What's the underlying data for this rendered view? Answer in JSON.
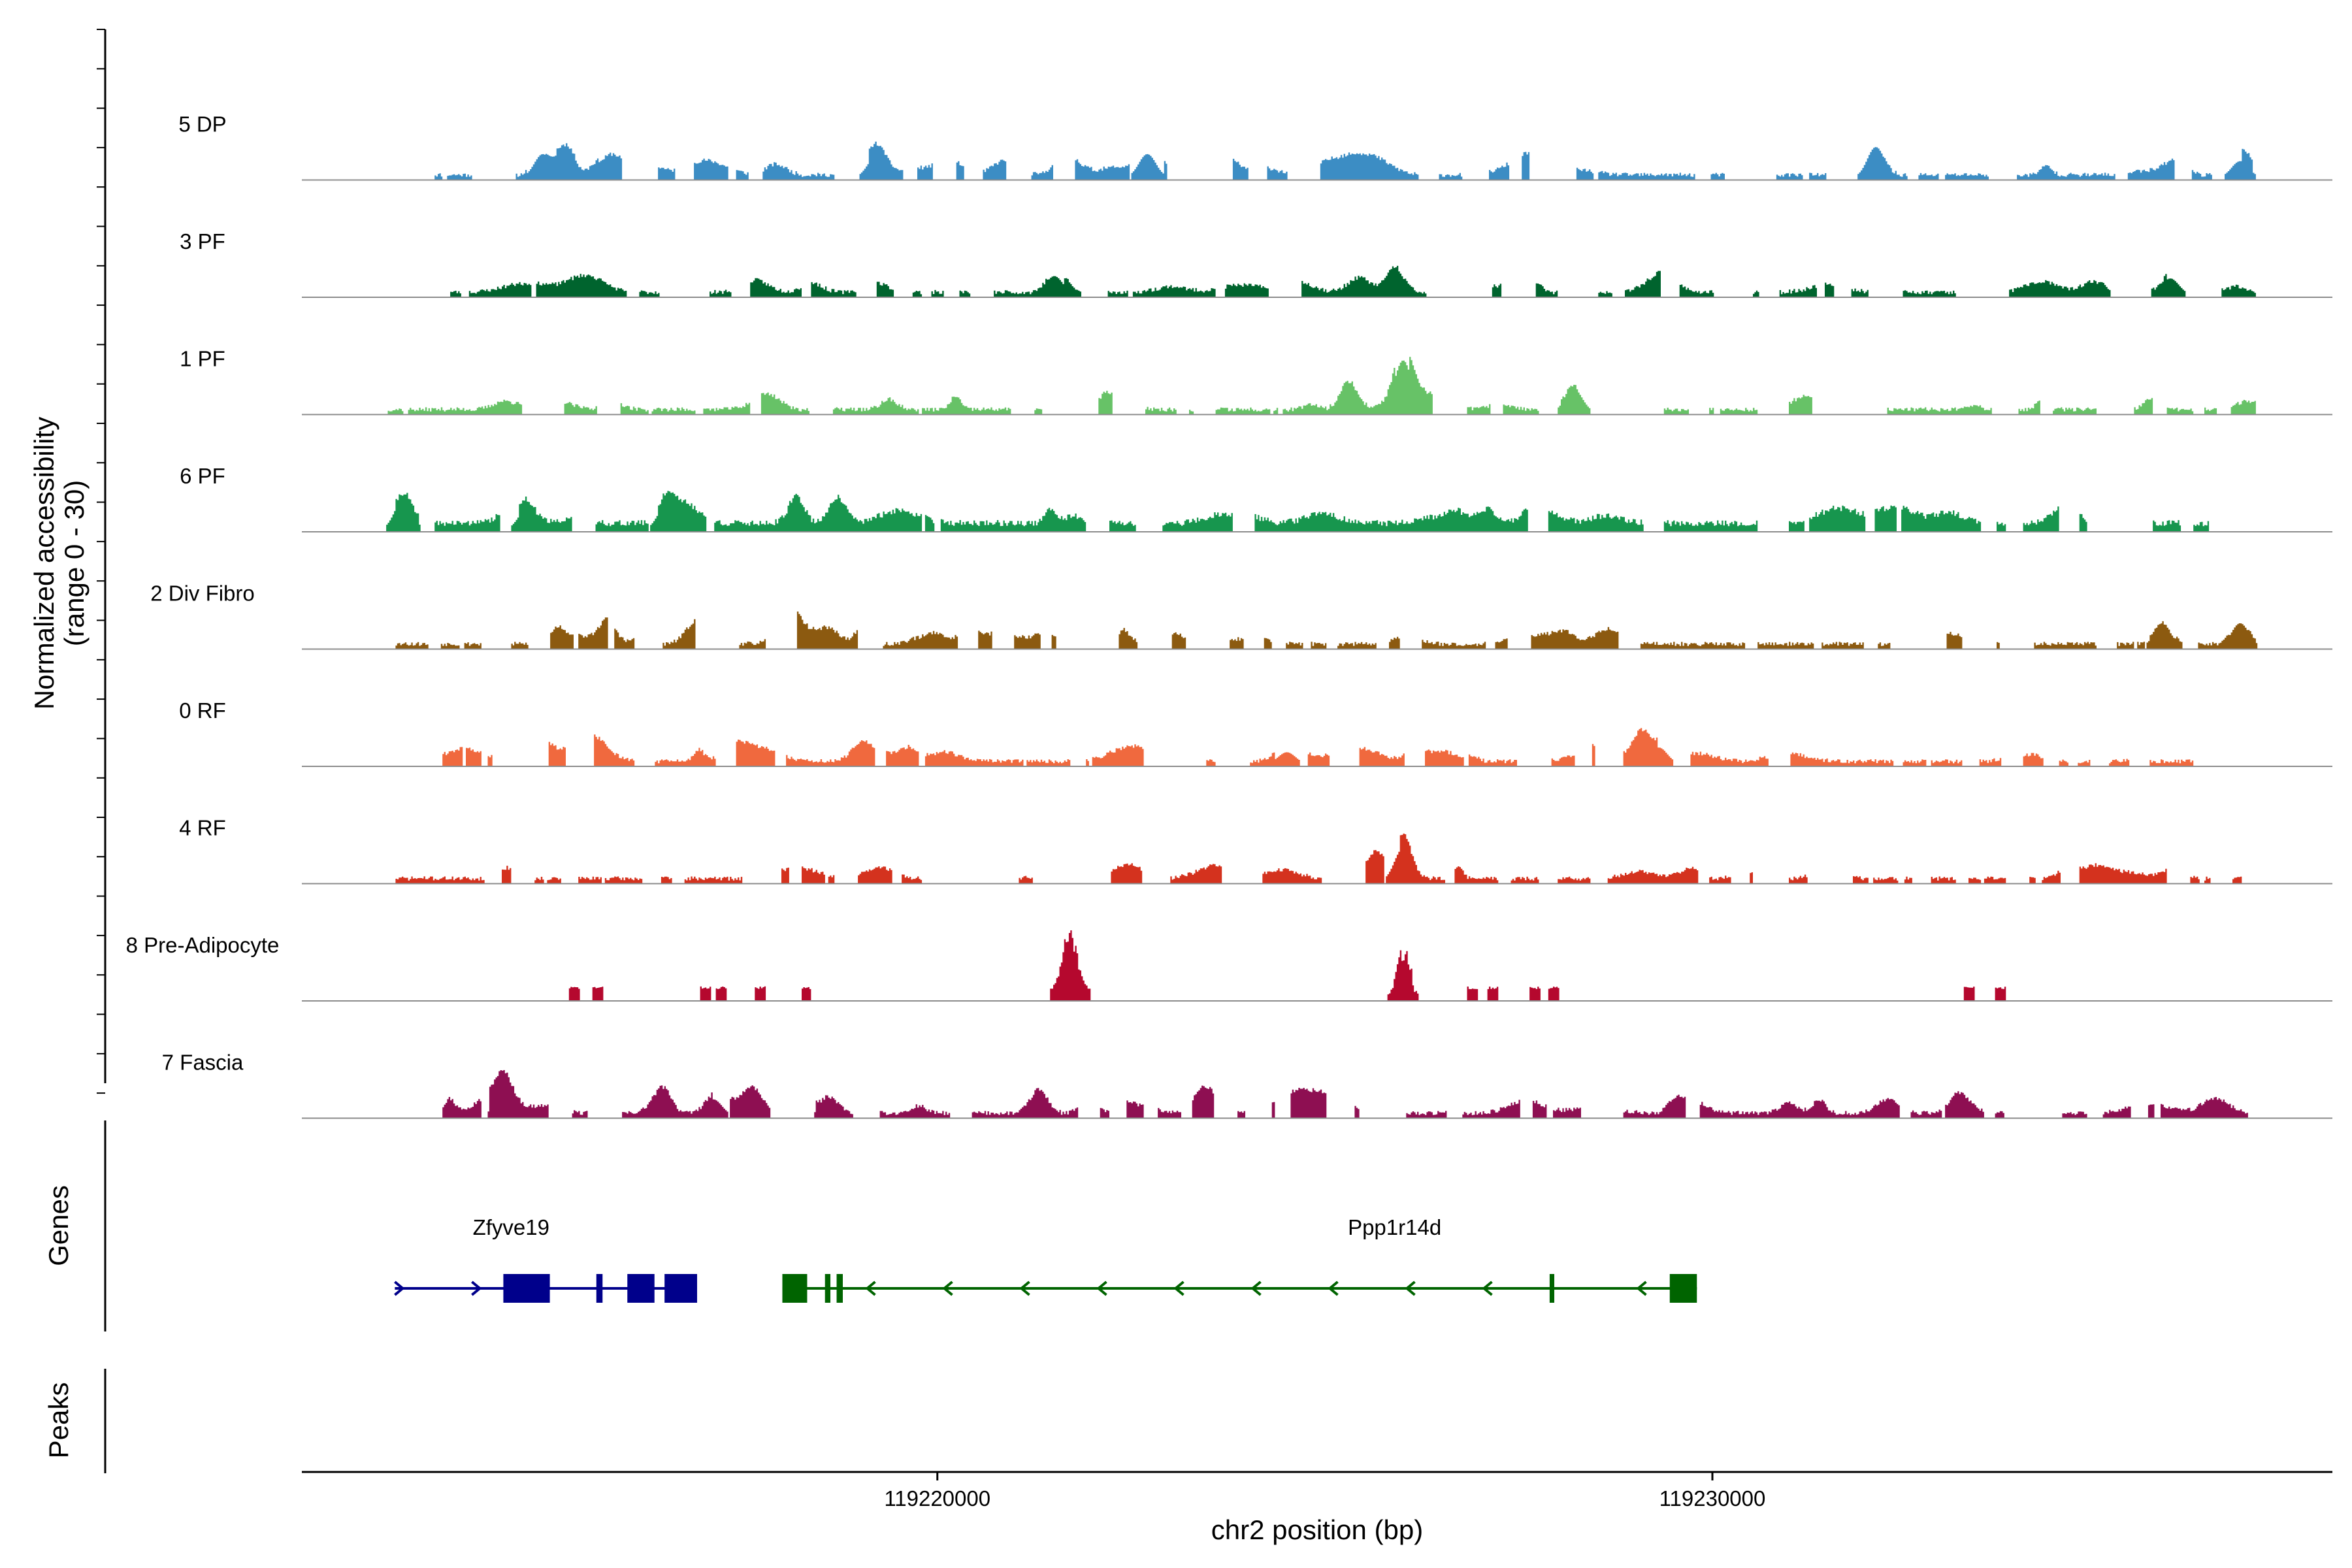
{
  "chart_data": {
    "type": "coverage-track",
    "ylabel_line1": "Normalized accessibility",
    "ylabel_line2": "(range 0 - 30)",
    "ylim": [
      0,
      30
    ],
    "xlabel": "chr2 position (bp)",
    "xlim": [
      119211800,
      119238000
    ],
    "xticks": [
      119220000,
      119230000
    ],
    "xtick_labels": [
      "119220000",
      "119230000"
    ],
    "genes_label": "Genes",
    "peaks_label": "Peaks",
    "tracks": [
      {
        "name": "5 DP",
        "color": "#3C8DC4",
        "style": "light",
        "seed": 11,
        "start": 119213500,
        "end": 119237000,
        "peaks": [
          [
            119214900,
            10
          ],
          [
            119215200,
            13
          ],
          [
            119219200,
            9
          ],
          [
            119222700,
            10
          ],
          [
            119232100,
            13
          ],
          [
            119236800,
            7
          ]
        ]
      },
      {
        "name": "3 PF",
        "color": "#00642E",
        "style": "light",
        "seed": 23,
        "start": 119213700,
        "end": 119237000,
        "peaks": [
          [
            119221500,
            8
          ],
          [
            119225900,
            11
          ],
          [
            119235900,
            7
          ]
        ]
      },
      {
        "name": "1 PF",
        "color": "#67C267",
        "style": "light",
        "seed": 37,
        "start": 119212900,
        "end": 119237000,
        "peaks": [
          [
            119225300,
            12
          ],
          [
            119226000,
            22
          ],
          [
            119228200,
            10
          ]
        ]
      },
      {
        "name": "6 PF",
        "color": "#17964E",
        "style": "heavy",
        "seed": 41,
        "start": 119213000,
        "end": 119236400,
        "peaks": [
          [
            119213100,
            13
          ],
          [
            119214700,
            9
          ],
          [
            119216500,
            11
          ],
          [
            119218700,
            11
          ]
        ]
      },
      {
        "name": "2 Div Fibro",
        "color": "#8C5A10",
        "style": "light",
        "seed": 53,
        "start": 119213000,
        "end": 119237000,
        "peaks": [
          [
            119236800,
            10
          ],
          [
            119235800,
            9
          ]
        ]
      },
      {
        "name": "0 RF",
        "color": "#F0693E",
        "style": "light",
        "seed": 61,
        "start": 119213600,
        "end": 119236400,
        "peaks": [
          [
            119229300,
            7
          ],
          [
            119224500,
            5
          ]
        ]
      },
      {
        "name": "4 RF",
        "color": "#D4321E",
        "style": "light",
        "seed": 71,
        "start": 119213000,
        "end": 119237000,
        "peaks": [
          [
            119226000,
            14
          ]
        ]
      },
      {
        "name": "8 Pre-Adipocyte",
        "color": "#B5082E",
        "style": "sparse",
        "seed": 83,
        "start": 119214800,
        "end": 119234500,
        "peaks": [
          [
            119221700,
            28
          ],
          [
            119226000,
            20
          ]
        ]
      },
      {
        "name": "7 Fascia",
        "color": "#8E0F52",
        "style": "medium",
        "seed": 97,
        "start": 119213600,
        "end": 119236900,
        "peaks": [
          [
            119214400,
            10
          ],
          [
            119221300,
            10
          ],
          [
            119217100,
            7
          ],
          [
            119218600,
            7
          ]
        ]
      }
    ],
    "genes": [
      {
        "name": "Zfyve19",
        "color": "#00008B",
        "strand": "+",
        "start": 119213000,
        "end": 119216900,
        "label_pos": 119214500,
        "exons": [
          [
            119214400,
            119215000
          ],
          [
            119215600,
            119215680
          ],
          [
            119216000,
            119216350
          ],
          [
            119216480,
            119216900
          ]
        ]
      },
      {
        "name": "Ppp1r14d",
        "color": "#006400",
        "strand": "-",
        "start": 119218000,
        "end": 119229800,
        "label_pos": 119225900,
        "exons": [
          [
            119218000,
            119218320
          ],
          [
            119218550,
            119218620
          ],
          [
            119218700,
            119218780
          ],
          [
            119227900,
            119227960
          ],
          [
            119229450,
            119229800
          ]
        ]
      }
    ]
  }
}
